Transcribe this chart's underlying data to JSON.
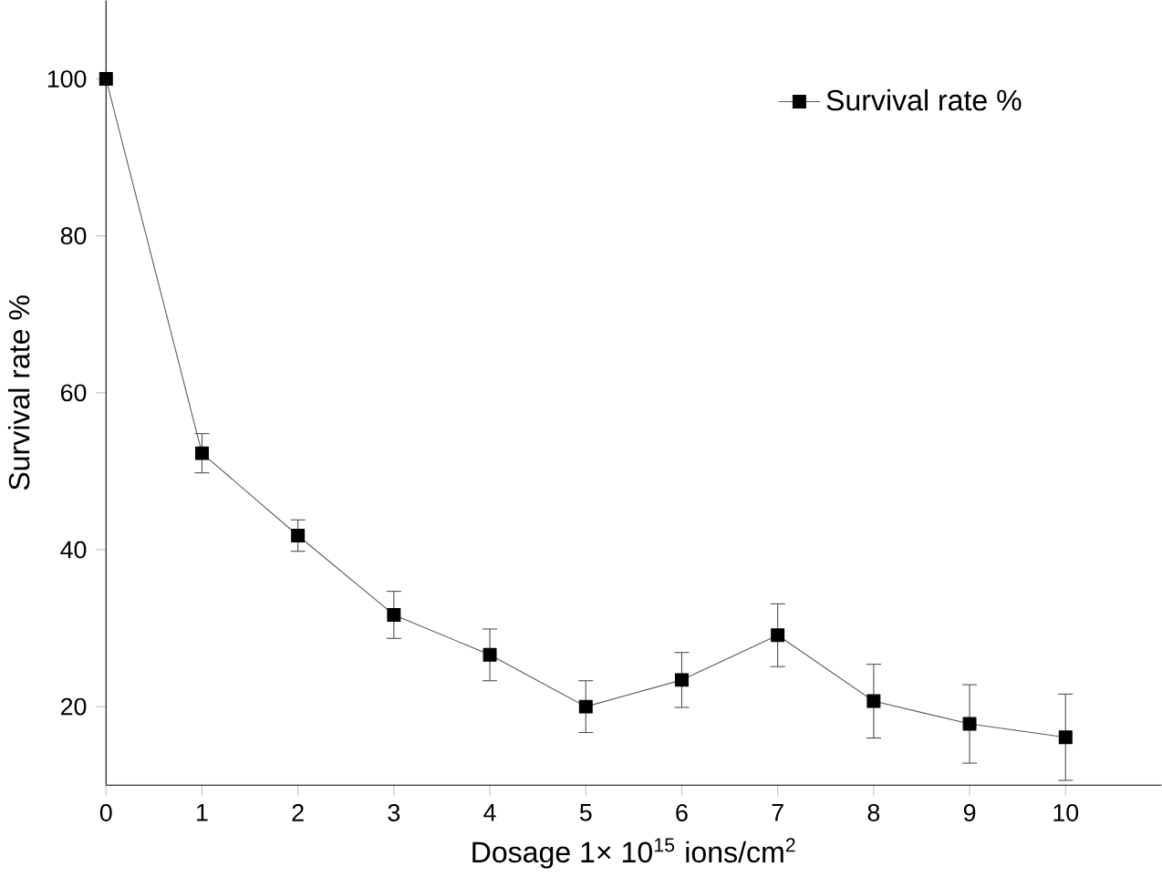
{
  "chart_data": {
    "type": "line",
    "xlabel": "Dosage 1× 10$^{15}$ ions/cm$^{2}$",
    "ylabel": "Survival rate %",
    "x": [
      0,
      1,
      2,
      3,
      4,
      5,
      6,
      7,
      8,
      9,
      10
    ],
    "series": [
      {
        "name": "Survival rate %",
        "color": "#000000",
        "values": [
          100,
          52.3,
          41.8,
          31.7,
          26.6,
          20,
          23.4,
          29.1,
          20.7,
          17.8,
          16.1
        ],
        "errors": [
          null,
          2.5,
          2,
          3,
          3.3,
          3.3,
          3.5,
          4,
          4.7,
          5,
          5.5
        ]
      }
    ],
    "xlim": [
      0,
      11
    ],
    "ylim": [
      10,
      110
    ],
    "xticks": [
      0,
      1,
      2,
      3,
      4,
      5,
      6,
      7,
      8,
      9,
      10
    ],
    "yticks": [
      20,
      40,
      60,
      80,
      100
    ],
    "marker": "square",
    "line_style": "solid",
    "legend": "top right",
    "grid": false
  }
}
